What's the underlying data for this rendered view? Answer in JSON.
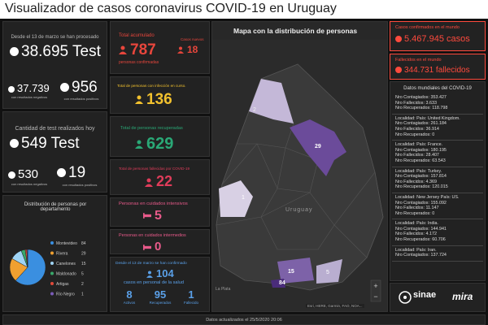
{
  "header": {
    "title": "Visualizador de casos coronavirus COVID-19 en Uruguay"
  },
  "tests": {
    "caption": "Desde el 13 de marzo se han procesado",
    "total": "38.695 Test",
    "negative": {
      "value": "37.739",
      "label": "con resultados negativos"
    },
    "positive": {
      "value": "956",
      "label": "con resultados positivos"
    }
  },
  "today": {
    "caption": "Cantidad de test realizados hoy",
    "total": "549 Test",
    "negative": {
      "value": "530",
      "label": "con resultados negativos"
    },
    "positive": {
      "value": "19",
      "label": "con resultados positivos"
    }
  },
  "distribution": {
    "title": "Distribución de personas por departamento",
    "departments": [
      {
        "name": "Montevideo",
        "value": 84,
        "color": "#3a8fe0"
      },
      {
        "name": "Rivera",
        "value": 29,
        "color": "#f0a030"
      },
      {
        "name": "Canelones",
        "value": 15,
        "color": "#9fd4f5"
      },
      {
        "name": "Maldonado",
        "value": 5,
        "color": "#38a86a"
      },
      {
        "name": "Artigas",
        "value": 2,
        "color": "#e04a3a"
      },
      {
        "name": "Río Negro",
        "value": 1,
        "color": "#7a5bb8"
      }
    ]
  },
  "cards": {
    "total": {
      "title": "Total acumulado",
      "value": "787",
      "label": "personas confirmadas",
      "new_title": "Casos nuevos",
      "new_value": "18"
    },
    "active": {
      "title": "Total de personas con infección en curso.",
      "value": "136"
    },
    "recovered": {
      "title": "Total de personas recuperadas",
      "value": "629"
    },
    "deceased": {
      "title": "Total de personas fallecidas por COVID-19",
      "value": "22"
    },
    "intensive": {
      "title": "Personas en cuidados intensivos",
      "value": "5"
    },
    "intermediate": {
      "title": "Personas en cuidados intermedios",
      "value": "0"
    },
    "health": {
      "caption": "Desde el 13 de marzo se han confirmado",
      "value": "104",
      "label": "casos en personal de la salud",
      "items": [
        {
          "value": "8",
          "label": "Activos"
        },
        {
          "value": "95",
          "label": "Recuperados"
        },
        {
          "value": "1",
          "label": "Fallecido"
        }
      ]
    }
  },
  "map": {
    "title": "Mapa con la distribución de personas",
    "counts": [
      "2",
      "29",
      "1",
      "15",
      "84",
      "5"
    ],
    "places": [
      "Uruguay",
      "La Plata"
    ],
    "attribution": "Esri, HERE, Garmin, FAO, NOA..."
  },
  "world": {
    "cases_title": "Casos confirmados en el mundo",
    "cases": "5.467.945 casos",
    "deaths_title": "Fallecidos en el mundo",
    "deaths": "344.731 fallecidos",
    "list_title": "Datos mundiales del COVID-19",
    "entries": [
      [
        "Nro Contagiados: 353.427",
        "Nro Fallecidos: 3.633",
        "Nro Recuperados: 118.798"
      ],
      [
        "Localidad:  País: United Kingdom.",
        "Nro Contagiados: 261.184",
        "Nro Fallecidos: 36.914",
        "Nro Recuperados: 0"
      ],
      [
        "Localidad:  País: France.",
        "Nro Contagiados: 180.195",
        "Nro Fallecidos: 28.407",
        "Nro Recuperados: 63.543"
      ],
      [
        "Localidad:  País: Turkey.",
        "Nro Contagiados: 157.814",
        "Nro Fallecidos: 4.369",
        "Nro Recuperados: 120.015"
      ],
      [
        "Localidad: New Jersey País: US.",
        "Nro Contagiados: 155.092",
        "Nro Fallecidos: 11.147",
        "Nro Recuperados: 0"
      ],
      [
        "Localidad:  País: India.",
        "Nro Contagiados: 144.941",
        "Nro Fallecidos: 4.172",
        "Nro Recuperados: 60.706"
      ],
      [
        "Localidad:  País: Iran.",
        "Nro Contagiados: 137.724"
      ]
    ]
  },
  "logos": [
    "sinae",
    "mira"
  ],
  "footer": "Datos actualizados el 25/5/2020 20:06"
}
